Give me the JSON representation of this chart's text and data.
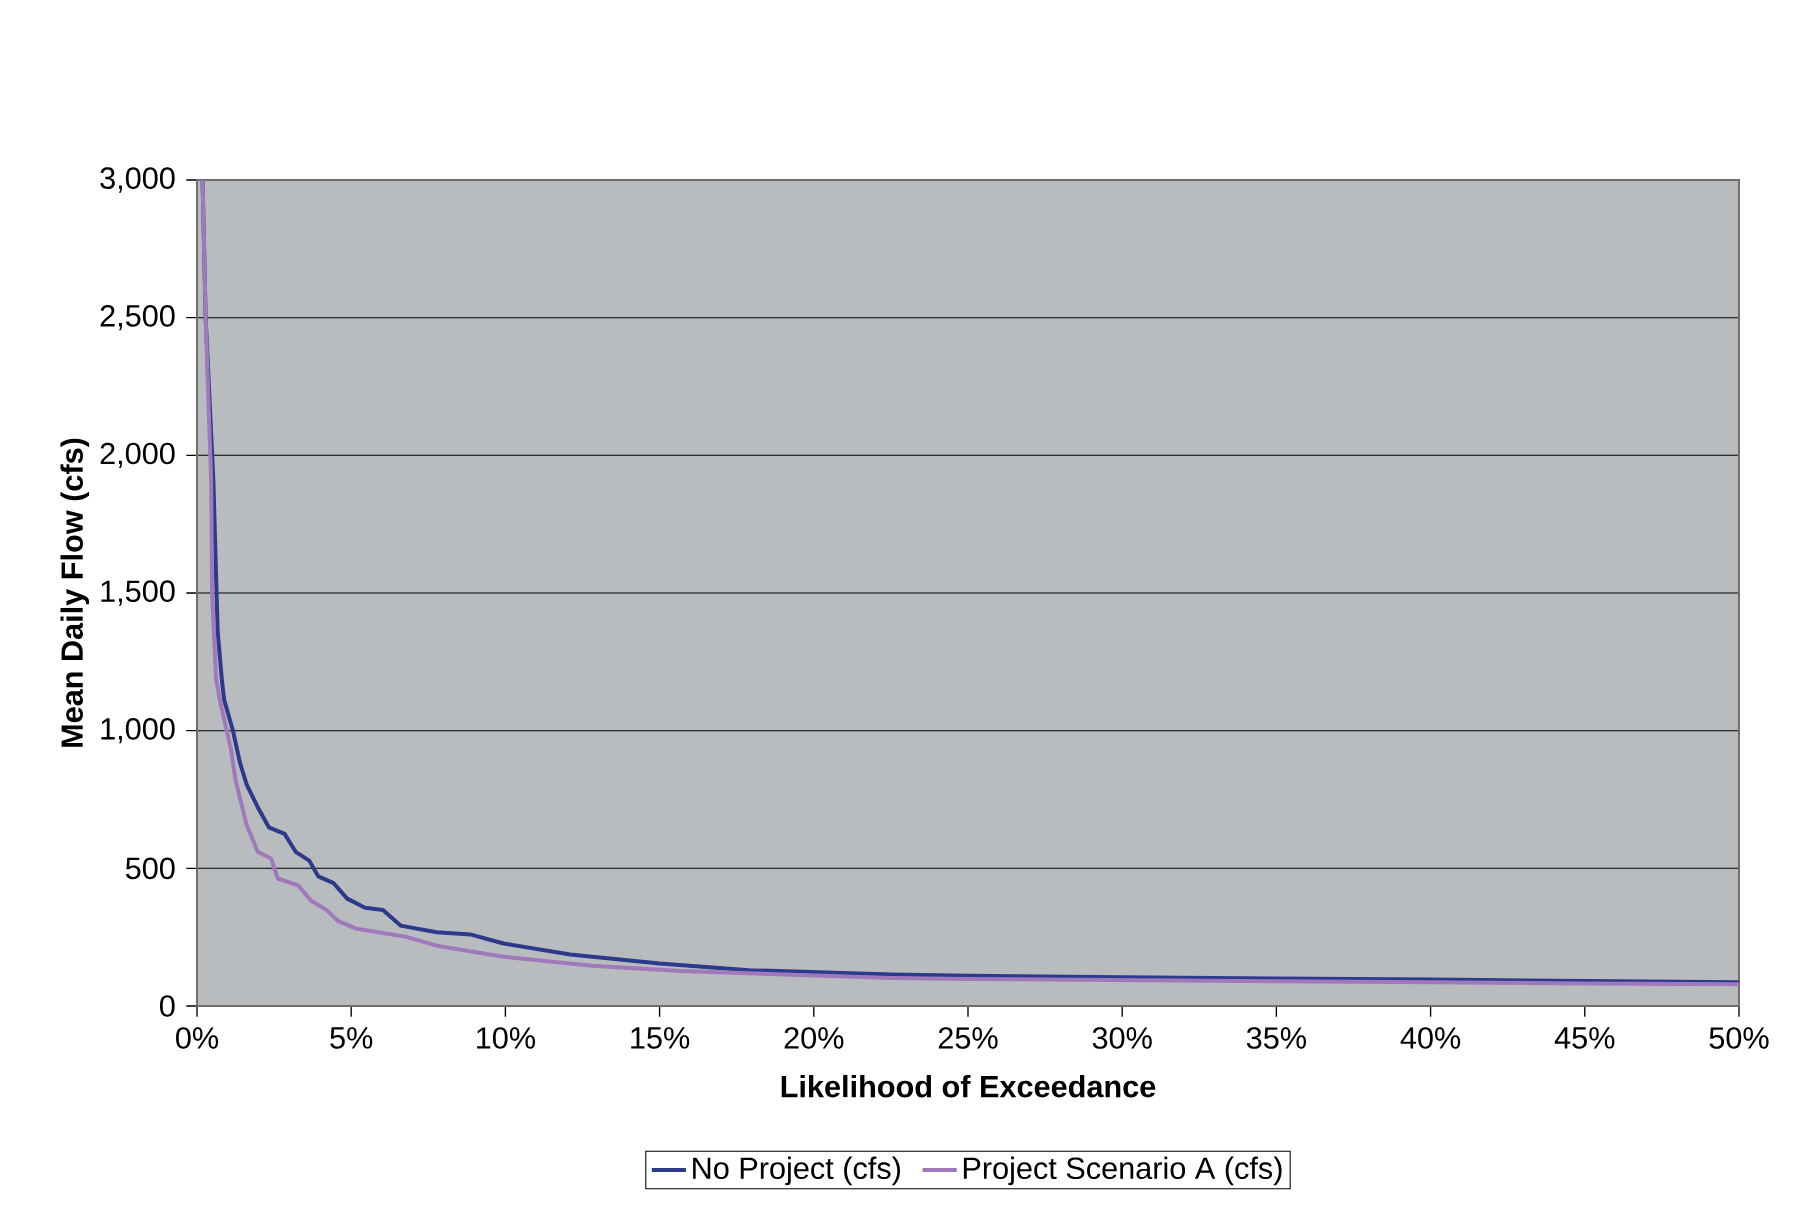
{
  "chart_data": {
    "type": "line",
    "xlabel": "Likelihood of Exceedance",
    "ylabel": "Mean Daily Flow (cfs)",
    "xlim": [
      0,
      50
    ],
    "ylim": [
      0,
      3000
    ],
    "xticks": [
      {
        "value": 0,
        "label": "0%"
      },
      {
        "value": 5,
        "label": "5%"
      },
      {
        "value": 10,
        "label": "10%"
      },
      {
        "value": 15,
        "label": "15%"
      },
      {
        "value": 20,
        "label": "20%"
      },
      {
        "value": 25,
        "label": "25%"
      },
      {
        "value": 30,
        "label": "30%"
      },
      {
        "value": 35,
        "label": "35%"
      },
      {
        "value": 40,
        "label": "40%"
      },
      {
        "value": 45,
        "label": "45%"
      },
      {
        "value": 50,
        "label": "50%"
      }
    ],
    "yticks": [
      0,
      500,
      {
        "value": 1000,
        "label": "1,000"
      },
      {
        "value": 1500,
        "label": "1,500"
      },
      {
        "value": 2000,
        "label": "2,000"
      },
      {
        "value": 2500,
        "label": "2,500"
      },
      {
        "value": 3000,
        "label": "3,000"
      }
    ],
    "grid": "y",
    "legend": "bottom",
    "marker": "none",
    "line_style": "solid",
    "series": [
      {
        "name": "No Project (cfs)",
        "color": "#2b3a8a",
        "x": [
          0.18,
          0.28,
          0.53,
          0.67,
          0.81,
          0.88,
          1.17,
          1.39,
          1.61,
          1.97,
          2.33,
          2.84,
          3.2,
          3.64,
          3.93,
          4.43,
          4.87,
          5.45,
          6.03,
          6.6,
          7.77,
          8.86,
          9.94,
          12.1,
          15.0,
          17.9,
          22.5,
          25,
          30,
          35,
          40,
          45,
          50
        ],
        "values": [
          3000,
          2500,
          1910,
          1360,
          1180,
          1112,
          998,
          885,
          804,
          722,
          649,
          625,
          560,
          528,
          471,
          446,
          390,
          357,
          349,
          292,
          268,
          260,
          227,
          187,
          154,
          130,
          114,
          110,
          104,
          100,
          96,
          91,
          86
        ]
      },
      {
        "name": "Project Scenario A (cfs)",
        "color": "#a078bc",
        "x": [
          0.18,
          0.28,
          0.41,
          0.46,
          0.49,
          0.62,
          0.74,
          1.1,
          1.25,
          1.61,
          1.97,
          2.4,
          2.62,
          3.28,
          3.71,
          4.2,
          4.58,
          5.16,
          5.88,
          6.75,
          7.77,
          9.94,
          12.8,
          15.7,
          22.5,
          25,
          30,
          35,
          40,
          45,
          50
        ],
        "values": [
          3000,
          2500,
          2070,
          1910,
          1500,
          1185,
          1112,
          933,
          820,
          657,
          560,
          536,
          463,
          438,
          381,
          349,
          308,
          281,
          268,
          252,
          219,
          179,
          146,
          127,
          102,
          98,
          94,
          90,
          86,
          82,
          79
        ]
      }
    ]
  }
}
